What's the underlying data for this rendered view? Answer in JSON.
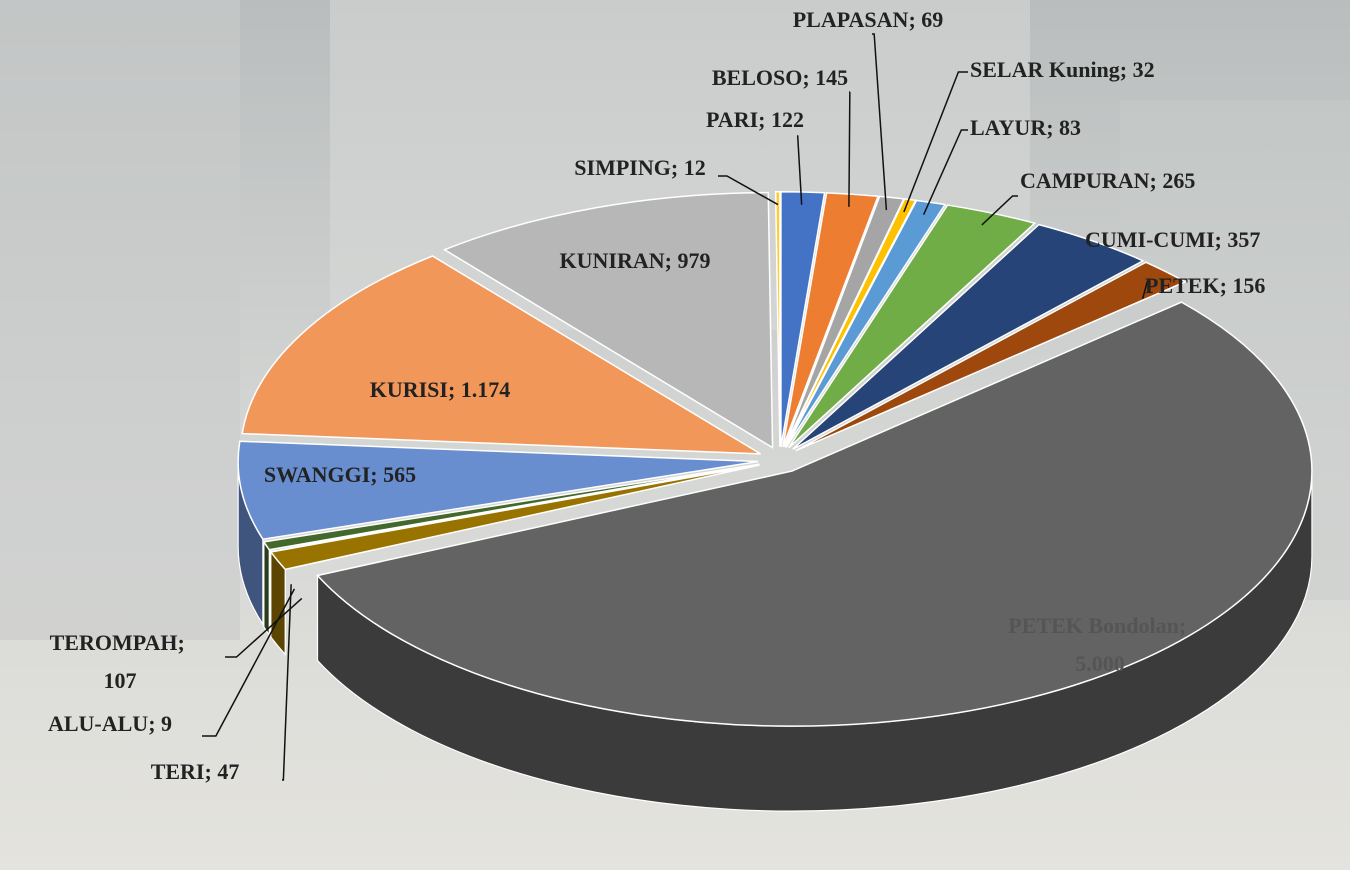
{
  "chart_data": {
    "type": "pie3d",
    "categories": [
      "PARI",
      "BELOSO",
      "PLAPASAN",
      "SELAR Kuning",
      "LAYUR",
      "CAMPURAN",
      "CUMI-CUMI",
      "PETEK",
      "PETEK Bondolan",
      "TEROMPAH",
      "ALU-ALU",
      "TERI",
      "SWANGGI",
      "KURISI",
      "KUNIRAN",
      "SIMPING"
    ],
    "values": [
      122,
      145,
      69,
      32,
      83,
      265,
      357,
      156,
      5000,
      107,
      9,
      47,
      565,
      1174,
      979,
      12
    ],
    "value_labels": [
      "122",
      "145",
      "69",
      "32",
      "83",
      "265",
      "357",
      "156",
      "5.000",
      "107",
      "9",
      "47",
      "565",
      "1.174",
      "979",
      "12"
    ],
    "label_separator": "; ",
    "colors": [
      "#4472c4",
      "#ed7d31",
      "#a5a5a5",
      "#ffc000",
      "#5b9bd5",
      "#70ad47",
      "#264478",
      "#9e480e",
      "#636363",
      "#997300",
      "#255e91",
      "#43682b",
      "#698ed0",
      "#f1975a",
      "#b7b7b7",
      "#ffcd33"
    ]
  }
}
